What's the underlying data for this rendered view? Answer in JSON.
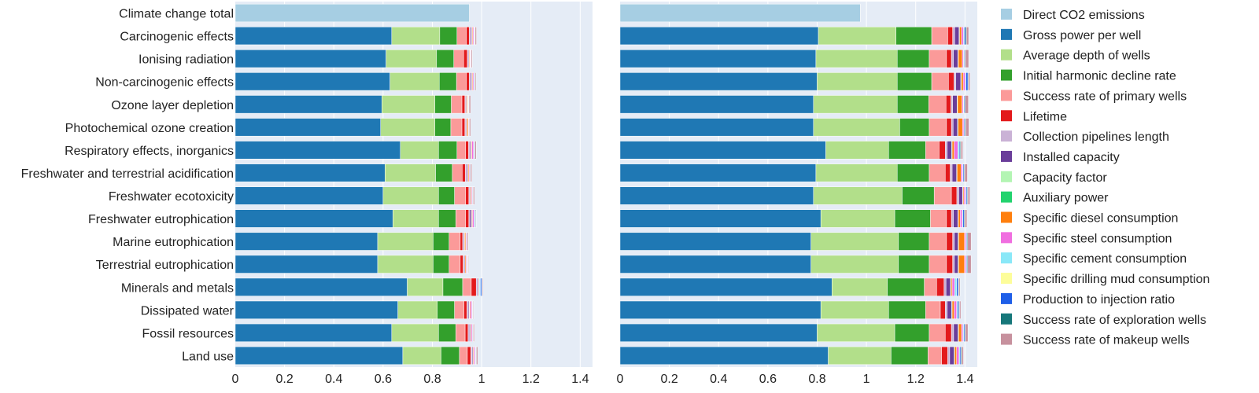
{
  "chart_data": {
    "type": "stacked-horizontal-bar",
    "title": "",
    "xlabel": "",
    "ylabel": "",
    "xlim": [
      0,
      1.45
    ],
    "xticks": [
      "0",
      "0.2",
      "0.4",
      "0.6",
      "0.8",
      "1",
      "1.2",
      "1.4"
    ],
    "xtick_values": [
      0,
      0.2,
      0.4,
      0.6,
      0.8,
      1.0,
      1.2,
      1.4
    ],
    "legend_position": "right",
    "categories": [
      "Climate change total",
      "Carcinogenic effects",
      "Ionising radiation",
      "Non-carcinogenic effects",
      "Ozone layer depletion",
      "Photochemical ozone creation",
      "Respiratory effects, inorganics",
      "Freshwater and terrestrial acidification",
      "Freshwater ecotoxicity",
      "Freshwater eutrophication",
      "Marine eutrophication",
      "Terrestrial eutrophication",
      "Minerals and metals",
      "Dissipated water",
      "Fossil resources",
      "Land use"
    ],
    "factors": [
      {
        "name": "Direct CO2 emissions",
        "color": "#a6cee3"
      },
      {
        "name": "Gross power per well",
        "color": "#1f78b4"
      },
      {
        "name": "Average depth of wells",
        "color": "#b2df8a"
      },
      {
        "name": "Initial harmonic decline rate",
        "color": "#33a02c"
      },
      {
        "name": "Success rate of primary wells",
        "color": "#fb9a99"
      },
      {
        "name": "Lifetime",
        "color": "#e31a1c"
      },
      {
        "name": "Collection pipelines length",
        "color": "#cab2d6"
      },
      {
        "name": "Installed capacity",
        "color": "#6a3d9a"
      },
      {
        "name": "Capacity factor",
        "color": "#b3f5b3"
      },
      {
        "name": "Auxiliary power",
        "color": "#22d36e"
      },
      {
        "name": "Specific diesel consumption",
        "color": "#ff7f0e"
      },
      {
        "name": "Specific steel consumption",
        "color": "#f06ee0"
      },
      {
        "name": "Specific cement consumption",
        "color": "#8ae8f8"
      },
      {
        "name": "Specific drilling mud consumption",
        "color": "#fdfd9a"
      },
      {
        "name": "Production to injection ratio",
        "color": "#1f5fe8"
      },
      {
        "name": "Success rate of exploration wells",
        "color": "#16777a"
      },
      {
        "name": "Success rate of makeup wells",
        "color": "#c7919e"
      }
    ],
    "panels": [
      {
        "name": "left",
        "series": [
          [
            0.95,
            0,
            0,
            0,
            0,
            0,
            0,
            0,
            0,
            0,
            0,
            0,
            0,
            0,
            0,
            0,
            0
          ],
          [
            0,
            0.635,
            0.195,
            0.07,
            0.038,
            0.012,
            0.006,
            0.004,
            0,
            0.001,
            0.003,
            0.004,
            0.001,
            0.001,
            0.002,
            0.002,
            0.005
          ],
          [
            0,
            0.612,
            0.205,
            0.07,
            0.04,
            0.015,
            0.004,
            0.003,
            0,
            0.001,
            0.003,
            0.002,
            0.001,
            0,
            0.001,
            0.001,
            0.004
          ],
          [
            0,
            0.628,
            0.2,
            0.07,
            0.04,
            0.012,
            0.006,
            0.004,
            0,
            0.001,
            0.003,
            0.004,
            0.001,
            0,
            0.002,
            0.002,
            0.004
          ],
          [
            0,
            0.595,
            0.215,
            0.067,
            0.043,
            0.012,
            0.004,
            0.003,
            0,
            0.001,
            0.003,
            0.002,
            0.001,
            0,
            0.002,
            0.001,
            0.006
          ],
          [
            0,
            0.59,
            0.22,
            0.065,
            0.045,
            0.012,
            0.004,
            0.003,
            0,
            0.001,
            0.005,
            0.002,
            0.001,
            0,
            0.001,
            0.001,
            0.005
          ],
          [
            0,
            0.67,
            0.155,
            0.075,
            0.035,
            0.012,
            0.005,
            0.004,
            0,
            0.001,
            0.003,
            0.007,
            0.002,
            0,
            0.002,
            0.002,
            0.005
          ],
          [
            0,
            0.608,
            0.205,
            0.068,
            0.04,
            0.013,
            0.005,
            0.004,
            0,
            0.001,
            0.004,
            0.003,
            0.001,
            0,
            0.002,
            0.001,
            0.005
          ],
          [
            0,
            0.6,
            0.225,
            0.065,
            0.045,
            0.013,
            0.004,
            0.003,
            0,
            0.001,
            0.003,
            0.003,
            0.001,
            0,
            0.002,
            0.001,
            0.005
          ],
          [
            0,
            0.64,
            0.185,
            0.07,
            0.04,
            0.013,
            0.005,
            0.006,
            0,
            0.001,
            0.003,
            0.006,
            0.002,
            0,
            0.003,
            0.002,
            0.002
          ],
          [
            0,
            0.578,
            0.225,
            0.065,
            0.045,
            0.01,
            0.004,
            0.003,
            0,
            0.001,
            0.004,
            0.003,
            0.001,
            0,
            0.002,
            0.001,
            0.004
          ],
          [
            0,
            0.578,
            0.225,
            0.065,
            0.045,
            0.012,
            0.004,
            0.003,
            0,
            0.001,
            0.004,
            0.003,
            0.001,
            0,
            0.002,
            0.001,
            0.003
          ],
          [
            0,
            0.698,
            0.145,
            0.08,
            0.035,
            0.02,
            0.004,
            0.004,
            0,
            0.001,
            0.002,
            0.002,
            0.004,
            0,
            0.005,
            0.002,
            0.003
          ],
          [
            0,
            0.66,
            0.16,
            0.07,
            0.038,
            0.012,
            0.006,
            0.004,
            0,
            0.001,
            0.003,
            0.006,
            0.002,
            0,
            0.002,
            0.002,
            0.002
          ],
          [
            0,
            0.635,
            0.19,
            0.07,
            0.038,
            0.012,
            0.005,
            0.004,
            0,
            0.001,
            0.003,
            0.004,
            0.001,
            0,
            0.002,
            0.001,
            0.004
          ],
          [
            0,
            0.68,
            0.155,
            0.075,
            0.032,
            0.014,
            0.004,
            0.004,
            0,
            0.001,
            0.003,
            0.005,
            0.002,
            0,
            0.002,
            0.002,
            0.005
          ]
        ]
      },
      {
        "name": "right",
        "series": [
          [
            0.975,
            0,
            0,
            0,
            0,
            0,
            0,
            0,
            0,
            0,
            0,
            0,
            0,
            0,
            0,
            0,
            0
          ],
          [
            0,
            0.805,
            0.315,
            0.145,
            0.065,
            0.02,
            0.008,
            0.018,
            0,
            0.002,
            0.008,
            0.008,
            0.003,
            0,
            0.005,
            0.004,
            0.009
          ],
          [
            0,
            0.795,
            0.33,
            0.13,
            0.07,
            0.02,
            0.008,
            0.018,
            0,
            0.002,
            0.016,
            0.005,
            0.002,
            0,
            0.003,
            0.003,
            0.013
          ],
          [
            0,
            0.8,
            0.325,
            0.14,
            0.068,
            0.022,
            0.008,
            0.02,
            0,
            0.002,
            0.008,
            0.008,
            0.003,
            0,
            0.008,
            0.003,
            0.006
          ],
          [
            0,
            0.785,
            0.34,
            0.128,
            0.07,
            0.02,
            0.007,
            0.018,
            0,
            0.002,
            0.018,
            0.005,
            0.002,
            0,
            0.003,
            0.003,
            0.013
          ],
          [
            0,
            0.785,
            0.35,
            0.12,
            0.07,
            0.02,
            0.007,
            0.018,
            0,
            0.002,
            0.018,
            0.005,
            0.002,
            0,
            0.003,
            0.003,
            0.013
          ],
          [
            0,
            0.835,
            0.255,
            0.15,
            0.055,
            0.025,
            0.008,
            0.018,
            0,
            0.002,
            0.008,
            0.015,
            0.006,
            0,
            0.004,
            0.003,
            0.007
          ],
          [
            0,
            0.795,
            0.33,
            0.13,
            0.065,
            0.02,
            0.008,
            0.018,
            0,
            0.002,
            0.016,
            0.006,
            0.002,
            0,
            0.004,
            0.003,
            0.011
          ],
          [
            0,
            0.785,
            0.36,
            0.13,
            0.07,
            0.022,
            0.008,
            0.015,
            0,
            0.002,
            0.004,
            0.006,
            0.003,
            0,
            0.004,
            0.003,
            0.008
          ],
          [
            0,
            0.815,
            0.3,
            0.145,
            0.065,
            0.02,
            0.008,
            0.018,
            0,
            0.002,
            0.008,
            0.008,
            0.003,
            0,
            0.005,
            0.003,
            0.008
          ],
          [
            0,
            0.775,
            0.355,
            0.125,
            0.07,
            0.025,
            0.007,
            0.015,
            0,
            0.002,
            0.024,
            0.005,
            0.002,
            0,
            0.003,
            0.003,
            0.014
          ],
          [
            0,
            0.775,
            0.355,
            0.125,
            0.07,
            0.025,
            0.007,
            0.015,
            0,
            0.002,
            0.024,
            0.005,
            0.002,
            0,
            0.003,
            0.003,
            0.014
          ],
          [
            0,
            0.86,
            0.225,
            0.15,
            0.05,
            0.03,
            0.008,
            0.018,
            0,
            0.002,
            0.005,
            0.01,
            0.008,
            0,
            0.006,
            0.003,
            0.005
          ],
          [
            0,
            0.815,
            0.275,
            0.15,
            0.06,
            0.02,
            0.008,
            0.018,
            0,
            0.002,
            0.008,
            0.01,
            0.004,
            0,
            0.005,
            0.003,
            0.005
          ],
          [
            0,
            0.8,
            0.315,
            0.14,
            0.065,
            0.025,
            0.009,
            0.018,
            0,
            0.002,
            0.012,
            0.006,
            0.003,
            0,
            0.004,
            0.003,
            0.01
          ],
          [
            0,
            0.845,
            0.255,
            0.15,
            0.055,
            0.025,
            0.008,
            0.018,
            0,
            0.002,
            0.008,
            0.01,
            0.004,
            0,
            0.004,
            0.003,
            0.007
          ]
        ]
      }
    ]
  }
}
